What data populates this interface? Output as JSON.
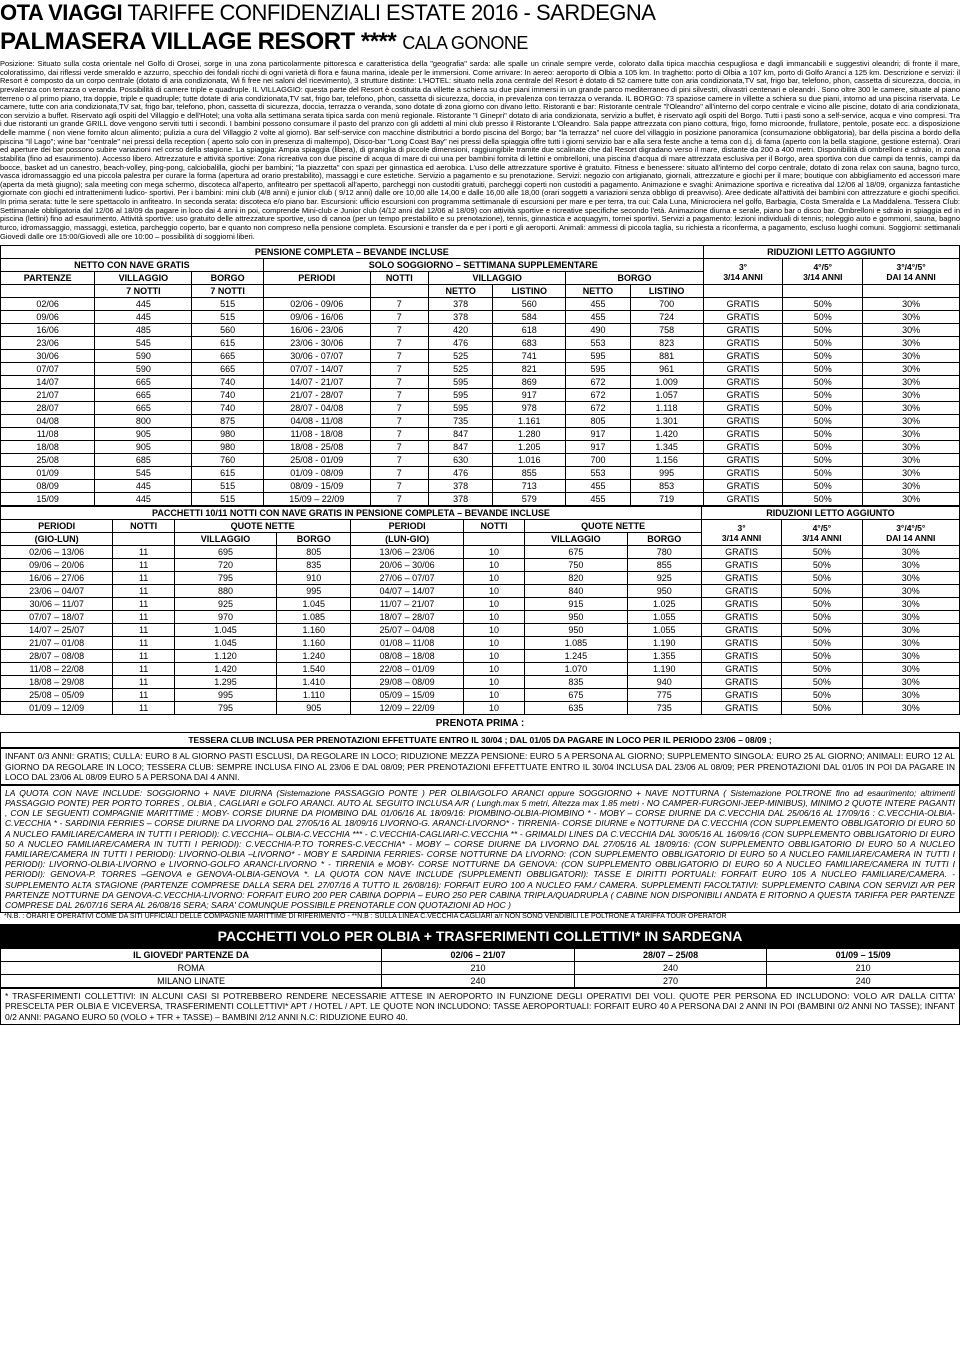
{
  "titles": {
    "line1a": "OTA VIAGGI",
    "line1b": " TARIFFE CONFIDENZIALI ESTATE 2016 - SARDEGNA",
    "line2a": "PALMASERA VILLAGE RESORT",
    "line2b": " **** ",
    "line2c": "CALA GONONE"
  },
  "body_text": "Posizione: Situato sulla costa orientale nel Golfo di Orosei, sorge in una zona particolarmente pittoresca e caratteristica della \"geografia\" sarda: alle spalle un crinale sempre verde, colorato dalla tipica macchia cespugliosa e dagli immancabili e suggestivi oleandri; di fronte il mare, coloratissimo, dai riflessi verde smeraldo e azzurro, specchio dei fondali ricchi di ogni varietà di flora e fauna marina, ideale per le immersioni. Come arrivare: In aereo: aeroporto di Olbia a 105 km. In traghetto: porto di Olbia a 107 km, porto di Golfo Aranci a 125 km. Descrizione e servizi: il Resort è composto da un corpo centrale (dotato di aria condizionata, Wi fi free nei saloni del ricevimento), 3 strutture distinte: L'HOTEL: situato nella zona centrale del Resort è dotato di 52 camere tutte con aria condizionata,TV sat, frigo bar, telefono, phon, cassetta di sicurezza, doccia, in prevalenza con terrazza o veranda. Possibilità di camere triple e quadruple. IL VILLAGGIO: questa parte del Resort è costituita da villette a schiera su due piani immersi in un grande parco mediterraneo di pini silvestri, olivastri centenari e oleandri . Sono oltre 300 le camere, situate al piano terreno o al primo piano, tra doppie, triple e quadruple; tutte dotate di aria condizionata,TV sat, frigo bar, telefono, phon, cassetta di sicurezza, doccia, in prevalenza con terrazza o veranda. IL BORGO: 73 spaziose camere in villette a schiera su due piani, intorno ad una piscina riservata. Le camere, tutte con aria condizionata,TV sat, frigo bar, telefono, phon, cassetta di sicurezza, doccia, terrazza o veranda, sono dotate di zona giorno con divano letto. Ristoranti e bar: Ristorante centrale \"l'Oleandro\" all'interno del corpo centrale e vicino alle piscine, dotato di aria condizionata, con servizio a buffet. Riservato agli ospiti del Villaggio e dell'Hotel; una volta alla settimana serata tipica sarda con menù regionale. Ristorante \"I Ginepri\" dotato di aria condizionata, servizio a buffet, è riservato agli ospiti del Borgo. Tutti i pasti sono a self-service, acqua e vino compresi. Tra i due ristoranti un grande GRILL dove vengono serviti tutti i secondi. I bambini possono consumare il pasto del pranzo con gli addetti al mini club presso il Ristorante L'Oleandro. Sala pappe attrezzata con piano cottura, frigo, forno microonde, frullatore, pentole, posate ecc. a disposizione delle mamme ( non viene fornito alcun alimento; pulizia a cura del Villaggio 2 volte al giorno). Bar self-service con macchine distributrici a bordo piscina del Borgo; bar \"la terrazza\" nel cuore del villaggio in posizione panoramica (consumazione obbligatoria), bar della piscina a bordo della piscina \"Il Lago\"; wine bar \"centrale\" nei pressi della reception ( aperto solo con in presenza di maltempo), Disco-bar \"Long Coast Bay\" nei pressi della spiaggia offre tutti i giorni servizio bar e alla sera feste anche a tema con d.j. di fama (aperto con la bella stagione, gestione esterna). Orari ed aperture dei bar possono subire variazioni nel corso della stagione. La spiaggia: Ampia spiaggia (libera), di graniglia di piccole dimensioni, raggiungibile tramite due scalinate che dal Resort digradano verso il mare, distante da 200 a 400 metri. Disponibilità di ombrelloni e sdraio, in zona stabilita (fino ad esaurimento). Accesso libero. Attrezzature e attività sportive: Zona ricreativa con due piscine di acqua di mare di cui una per bambini fornita di lettini e ombrelloni, una piscina d'acqua di mare attrezzata esclusiva per il Borgo, area sportiva con due campi da tennis, campi da bocce, basket ad un canestro, beach-volley, ping-pong, calciobalilla, giochi per bambini; \"la piazzetta\" con spazi per ginnastica ed aerobica. L'uso delle attrezzature sportive è gratuito. Fitness e benessere: situato all'interno del corpo centrale, dotato di zona relax con sauna, bagno turco, vasca idromassaggio ed una piccola palestra per curare la forma (apertura ad orario prestabilito), massaggi e cure estetiche. Servizio a pagamento e su prenotazione. Servizi: negozio con artigianato, giornali, attrezzature e giochi per il mare; boutique con abbigliamento ed accessori mare (aperta da metà giugno); sala meeting con mega schermo, discoteca all'aperto, anfiteatro per spettacoli all'aperto, parcheggi non custoditi gratuiti, parcheggi coperti non custoditi a pagamento. Animazione e svaghi: Animazione sportiva e ricreativa dal 12/06 al 18/09, organizza fantastiche giornate con giochi ed intrattenimenti ludico- sportivi. Per i bambini: mini club (4/8 anni) e junior club ( 9/12 anni) dalle ore 10,00 alle 14,00 e dalle 16,00 alle 18,00 (orari soggetti a variazioni senza obbligo di preavviso). Aree dedicate all'attività dei bambini con attrezzature e giochi specifici. In prima serata: tutte le sere spettacolo in anfiteatro. In seconda serata: discoteca e/o piano bar. Escursioni: ufficio escursioni con programma settimanale di escursioni per mare e per terra, tra cui: Cala Luna, Minicrociera nel golfo, Barbagia, Costa Smeralda e La Maddalena. Tessera Club: Settimanale obbligatoria dal 12/06 al 18/09 da pagare in loco dai 4 anni in poi, comprende Mini-club e Junior club (4/12 anni dal 12/06 al 18/09) con attività sportive e ricreative specifiche secondo l'età. Animazione diurna e serale, piano bar o disco bar. Ombrelloni e sdraio in spiaggia ed in piscina (lettini) fino ad esaurimento. Attività sportive: uso gratuito delle attrezzature sportive, uso di canoa (per un tempo prestabilito e su prenotazione), tennis, ginnastica e acquagym, tornei sportivi. Servizi a pagamento: lezioni individuali di tennis; noleggio auto e gommoni, sauna, bagno turco, idromassaggio, massaggi, estetica, parcheggio coperto, bar e quanto non compreso nella pensione completa. Escursioni e transfer da e per i porti e gli aeroporti. Animali: ammessi di piccola taglia, su richiesta a riconferma, a pagamento, escluso luoghi comuni. Soggiorni: settimanali Giovedì dalle ore 15:00/Giovedì alle ore 10:00 – possibilità di soggiorni liberi.",
  "t1": {
    "title_left": "PENSIONE COMPLETA – BEVANDE INCLUSE",
    "title_right": "RIDUZIONI LETTO AGGIUNTO",
    "h_netto": "NETTO CON NAVE GRATIS",
    "h_solo": "SOLO SOGGIORNO – SETTIMANA SUPPLEMENTARE",
    "h_3": "3°",
    "h_45": "4°/5°",
    "h_345": "3°/4°/5°",
    "h_314": "3/14 ANNI",
    "h_314b": "3/14 ANNI",
    "h_dai14": "DAI 14 ANNI",
    "h_part": "PARTENZE",
    "h_vil": "VILLAGGIO",
    "h_bor": "BORGO",
    "h_per": "PERIODI",
    "h_not": "NOTTI",
    "h_7n": "7 NOTTI",
    "h_7nb": "7 NOTTI",
    "h_netto2": "NETTO",
    "h_list": "LISTINO",
    "rows": [
      [
        "02/06",
        "445",
        "515",
        "02/06 - 09/06",
        "7",
        "378",
        "560",
        "455",
        "700",
        "GRATIS",
        "50%",
        "30%"
      ],
      [
        "09/06",
        "445",
        "515",
        "09/06 - 16/06",
        "7",
        "378",
        "584",
        "455",
        "724",
        "GRATIS",
        "50%",
        "30%"
      ],
      [
        "16/06",
        "485",
        "560",
        "16/06 - 23/06",
        "7",
        "420",
        "618",
        "490",
        "758",
        "GRATIS",
        "50%",
        "30%"
      ],
      [
        "23/06",
        "545",
        "615",
        "23/06 - 30/06",
        "7",
        "476",
        "683",
        "553",
        "823",
        "GRATIS",
        "50%",
        "30%"
      ],
      [
        "30/06",
        "590",
        "665",
        "30/06 - 07/07",
        "7",
        "525",
        "741",
        "595",
        "881",
        "GRATIS",
        "50%",
        "30%"
      ],
      [
        "07/07",
        "590",
        "665",
        "07/07 - 14/07",
        "7",
        "525",
        "821",
        "595",
        "961",
        "GRATIS",
        "50%",
        "30%"
      ],
      [
        "14/07",
        "665",
        "740",
        "14/07 - 21/07",
        "7",
        "595",
        "869",
        "672",
        "1.009",
        "GRATIS",
        "50%",
        "30%"
      ],
      [
        "21/07",
        "665",
        "740",
        "21/07 - 28/07",
        "7",
        "595",
        "917",
        "672",
        "1.057",
        "GRATIS",
        "50%",
        "30%"
      ],
      [
        "28/07",
        "665",
        "740",
        "28/07 - 04/08",
        "7",
        "595",
        "978",
        "672",
        "1.118",
        "GRATIS",
        "50%",
        "30%"
      ],
      [
        "04/08",
        "800",
        "875",
        "04/08 - 11/08",
        "7",
        "735",
        "1.161",
        "805",
        "1.301",
        "GRATIS",
        "50%",
        "30%"
      ],
      [
        "11/08",
        "905",
        "980",
        "11/08 - 18/08",
        "7",
        "847",
        "1.280",
        "917",
        "1.420",
        "GRATIS",
        "50%",
        "30%"
      ],
      [
        "18/08",
        "905",
        "980",
        "18/08 - 25/08",
        "7",
        "847",
        "1.205",
        "917",
        "1.345",
        "GRATIS",
        "50%",
        "30%"
      ],
      [
        "25/08",
        "685",
        "760",
        "25/08 - 01/09",
        "7",
        "630",
        "1.016",
        "700",
        "1.156",
        "GRATIS",
        "50%",
        "30%"
      ],
      [
        "01/09",
        "545",
        "615",
        "01/09 - 08/09",
        "7",
        "476",
        "855",
        "553",
        "995",
        "GRATIS",
        "50%",
        "30%"
      ],
      [
        "08/09",
        "445",
        "515",
        "08/09 - 15/09",
        "7",
        "378",
        "713",
        "455",
        "853",
        "GRATIS",
        "50%",
        "30%"
      ],
      [
        "15/09",
        "445",
        "515",
        "15/09 – 22/09",
        "7",
        "378",
        "579",
        "455",
        "719",
        "GRATIS",
        "50%",
        "30%"
      ]
    ]
  },
  "t2": {
    "title_left": "PACCHETTI 10/11 NOTTI CON NAVE GRATIS IN PENSIONE COMPLETA – BEVANDE INCLUSE",
    "title_right": "RIDUZIONI LETTO AGGIUNTO",
    "h_per": "PERIODI",
    "h_not": "NOTTI",
    "h_qn": "QUOTE NETTE",
    "h_gio": "(GIO-LUN)",
    "h_lun": "(LUN-GIO)",
    "h_vil": "VILLAGGIO",
    "h_bor": "BORGO",
    "h_3": "3°",
    "h_45": "4°/5°",
    "h_345": "3°/4°/5°",
    "h_314": "3/14 ANNI",
    "h_314b": "3/14 ANNI",
    "h_dai14": "DAI 14 ANNI",
    "rows": [
      [
        "02/06 – 13/06",
        "11",
        "695",
        "805",
        "13/06 – 23/06",
        "10",
        "675",
        "780",
        "GRATIS",
        "50%",
        "30%"
      ],
      [
        "09/06 – 20/06",
        "11",
        "720",
        "835",
        "20/06 – 30/06",
        "10",
        "750",
        "855",
        "GRATIS",
        "50%",
        "30%"
      ],
      [
        "16/06 – 27/06",
        "11",
        "795",
        "910",
        "27/06 – 07/07",
        "10",
        "820",
        "925",
        "GRATIS",
        "50%",
        "30%"
      ],
      [
        "23/06 – 04/07",
        "11",
        "880",
        "995",
        "04/07 – 14/07",
        "10",
        "840",
        "950",
        "GRATIS",
        "50%",
        "30%"
      ],
      [
        "30/06 – 11/07",
        "11",
        "925",
        "1.045",
        "11/07 – 21/07",
        "10",
        "915",
        "1.025",
        "GRATIS",
        "50%",
        "30%"
      ],
      [
        "07/07 – 18/07",
        "11",
        "970",
        "1.085",
        "18/07 – 28/07",
        "10",
        "950",
        "1.055",
        "GRATIS",
        "50%",
        "30%"
      ],
      [
        "14/07 – 25/07",
        "11",
        "1.045",
        "1.160",
        "25/07 – 04/08",
        "10",
        "950",
        "1.055",
        "GRATIS",
        "50%",
        "30%"
      ],
      [
        "21/07 – 01/08",
        "11",
        "1.045",
        "1.160",
        "01/08 – 11/08",
        "10",
        "1.085",
        "1.190",
        "GRATIS",
        "50%",
        "30%"
      ],
      [
        "28/07 – 08/08",
        "11",
        "1.120",
        "1.240",
        "08/08 – 18/08",
        "10",
        "1.245",
        "1.355",
        "GRATIS",
        "50%",
        "30%"
      ],
      [
        "11/08 – 22/08",
        "11",
        "1.420",
        "1.540",
        "22/08 – 01/09",
        "10",
        "1.070",
        "1.190",
        "GRATIS",
        "50%",
        "30%"
      ],
      [
        "18/08 – 29/08",
        "11",
        "1.295",
        "1.410",
        "29/08 – 08/09",
        "10",
        "835",
        "940",
        "GRATIS",
        "50%",
        "30%"
      ],
      [
        "25/08 – 05/09",
        "11",
        "995",
        "1.110",
        "05/09 – 15/09",
        "10",
        "675",
        "775",
        "GRATIS",
        "50%",
        "30%"
      ],
      [
        "01/09 – 12/09",
        "11",
        "795",
        "905",
        "12/09 – 22/09",
        "10",
        "635",
        "735",
        "GRATIS",
        "50%",
        "30%"
      ]
    ]
  },
  "prenota": "PRENOTA PRIMA :",
  "tessera": "TESSERA CLUB INCLUSA PER PRENOTAZIONI EFFETTUATE ENTRO IL 30/04 ; DAL 01/05 DA PAGARE IN LOCO PER IL PERIODO 23/06 – 08/09 ;",
  "info1": "INFANT 0/3 ANNI: GRATIS; CULLA: EURO 8 AL GIORNO PASTI ESCLUSI, DA REGOLARE IN LOCO; RIDUZIONE MEZZA PENSIONE: EURO 5 A PERSONA AL GIORNO; SUPPLEMENTO SINGOLA: EURO 25 AL GIORNO; ANIMALI: EURO 12 AL GIORNO DA REGOLARE IN LOCO; TESSERA CLUB: SEMPRE INCLUSA FINO AL 23/06 E DAL 08/09; PER PRENOTAZIONI EFFETTUATE ENTRO IL 30/04 INCLUSA DAL 23/06 AL 08/09; PER PRENOTAZIONI DAL 01/05 IN POI DA PAGARE IN LOCO DAL 23/06 AL 08/09 EURO 5 A PERSONA DAI 4 ANNI.",
  "info2": "LA QUOTA CON NAVE INCLUDE: SOGGIORNO + NAVE DIURNA (Sistemazione PASSAGGIO PONTE ) PER OLBIA/GOLFO ARANCI oppure SOGGIORNO + NAVE NOTTURNA ( Sistemazione POLTRONE fino ad esaurimento; altrimenti PASSAGGIO PONTE) PER PORTO TORRES , OLBIA , CAGLIARI e GOLFO ARANCI. AUTO AL SEGUITO INCLUSA A/R ( Lungh.max 5 metri, Altezza max 1.85 metri - NO CAMPER-FURGONI-JEEP-MINIBUS), MINIMO 2 QUOTE INTERE PAGANTI , CON LE SEGUENTI COMPAGNIE MARITTIME : MOBY- CORSE DIURNE DA PIOMBINO DAL 01/06/16 AL 18/09/16: PIOMBINO-OLBIA-PIOMBINO * - MOBY – CORSE DIURNE DA C.VECCHIA DAL 25/06/16 AL 17/09/16 : C.VECCHIA-OLBIA-C.VECCHIA * - SARDINIA FERRIES – CORSE DIURNE DA LIVORNO DAL 27/05/16 AL 18/09/16 LIVORNO-G. ARANCI-LIVORNO* - TIRRENIA- CORSE DIURNE e NOTTURNE DA C.VECCHIA (CON SUPPLEMENTO OBBLIGATORIO DI EURO 50 A NUCLEO FAMILIARE/CAMERA IN TUTTI I PERIODI): C.VECCHIA– OLBIA-C.VECCHIA *** - C.VECCHIA-CAGLIARI-C.VECCHIA ** - GRIMALDI LINES DA C.VECCHIA DAL 30/05/16 AL 16/09/16 (CON SUPPLEMENTO OBBLIGATORIO DI EURO 50 A NUCLEO FAMILIARE/CAMERA IN TUTTI I PERIODI): C.VECCHIA-P.TO TORRES-C.VECCHIA* - MOBY – CORSE DIURNE DA LIVORNO DAL 27/05/16 AL 18/09/16: (CON SUPPLEMENTO OBBLIGATORIO DI EURO 50 A NUCLEO FAMILIARE/CAMERA IN TUTTI I PERIODI): LIVORNO-OLBIA –LIVORNO* - MOBY E SARDINIA FERRIES- CORSE NOTTURNE DA LIVORNO: (CON SUPPLEMENTO OBBLIGATORIO DI EURO 50 A NUCLEO FAMILIARE/CAMERA IN TUTTI I PERIODI): LIVORNO-OLBIA-LIVORNO e LIVORNO-GOLFO ARANCI-LIVORNO * - TIRRENIA e MOBY- CORSE NOTTURNE DA GENOVA: (CON SUPPLEMENTO OBBLIGATORIO DI EURO 50 A NUCLEO FAMILIARE/CAMERA IN TUTTI I PERIODI): GENOVA-P. TORRES –GENOVA e GENOVA-OLBIA-GENOVA *. LA QUOTA CON NAVE INCLUDE (SUPPLEMENTI OBBLIGATORI): TASSE E DIRITTI PORTUALI: FORFAIT EURO 105 A NUCLEO FAMILIARE/CAMERA. - SUPPLEMENTO ALTA STAGIONE (PARTENZE COMPRESE DALLA SERA DEL 27/07/16 A TUTTO IL 26/08/16): FORFAIT EURO 100 A NUCLEO FAM./ CAMERA. SUPPLEMENTI FACOLTATIVI: SUPPLEMENTO CABINA CON SERVIZI A/R PER PARTENZE NOTTURNE DA GENOVA-C.VECCHIA-LIVORNO: FORFAIT EURO 200 PER CABINA DOPPIA – EURO 250 PER CABINA TRIPLA/QUADRUPLA ( CABINE NON DISPONIBILI ANDATA E RITORNO A QUESTA TARIFFA PER PARTENZE COMPRESE DAL 26/07/16 SERA  AL 26/08/16 SERA; SARA' COMUNQUE POSSIBILE PRENOTARLE CON QUOTAZIONI AD HOC )",
  "nb": "*N.B. : ORARI E OPERATIVI  COME DA SITI UFFICIALI DELLE COMPAGNIE MARITTIME DI RIFERIMENTO - **N.B : SULLA LINEA C.VECCHIA CAGLIARI a/r NON SONO VENDIBILI LE POLTRONE A TARIFFA TOUR OPERATOR",
  "band": "PACCHETTI VOLO PER OLBIA + TRASFERIMENTI COLLETTIVI* IN SARDEGNA",
  "t3": {
    "h_gio": "IL GIOVEDI' PARTENZE DA",
    "h_c1": "02/06 – 21/07",
    "h_c2": "28/07 – 25/08",
    "h_c3": "01/09 – 15/09",
    "rows": [
      [
        "ROMA",
        "210",
        "240",
        "210"
      ],
      [
        "MILANO LINATE",
        "240",
        "270",
        "240"
      ]
    ]
  },
  "footer": "* TRASFERIMENTI COLLETTIVI: IN ALCUNI CASI SI POTREBBERO RENDERE NECESSARIE ATTESE IN AEROPORTO IN FUNZIONE DEGLI OPERATIVI DEI VOLI. QUOTE PER PERSONA ED INCLUDONO: VOLO A/R DALLA CITTA' PRESCELTA PER OLBIA E VICEVERSA, TRASFERIMENTI COLLETTIVI* APT / HOTEL / APT. LE QUOTE NON INCLUDONO: TASSE AEROPORTUALI: FORFAIT EURO 40 A PERSONA DAI 2 ANNI IN POI (BAMBINI 0/2 ANNI NO TASSE); INFANT 0/2 ANNI: PAGANO EURO 50 (VOLO + TFR + TASSE) – BAMBINI 2/12 ANNI N.C: RIDUZIONE EURO 40."
}
